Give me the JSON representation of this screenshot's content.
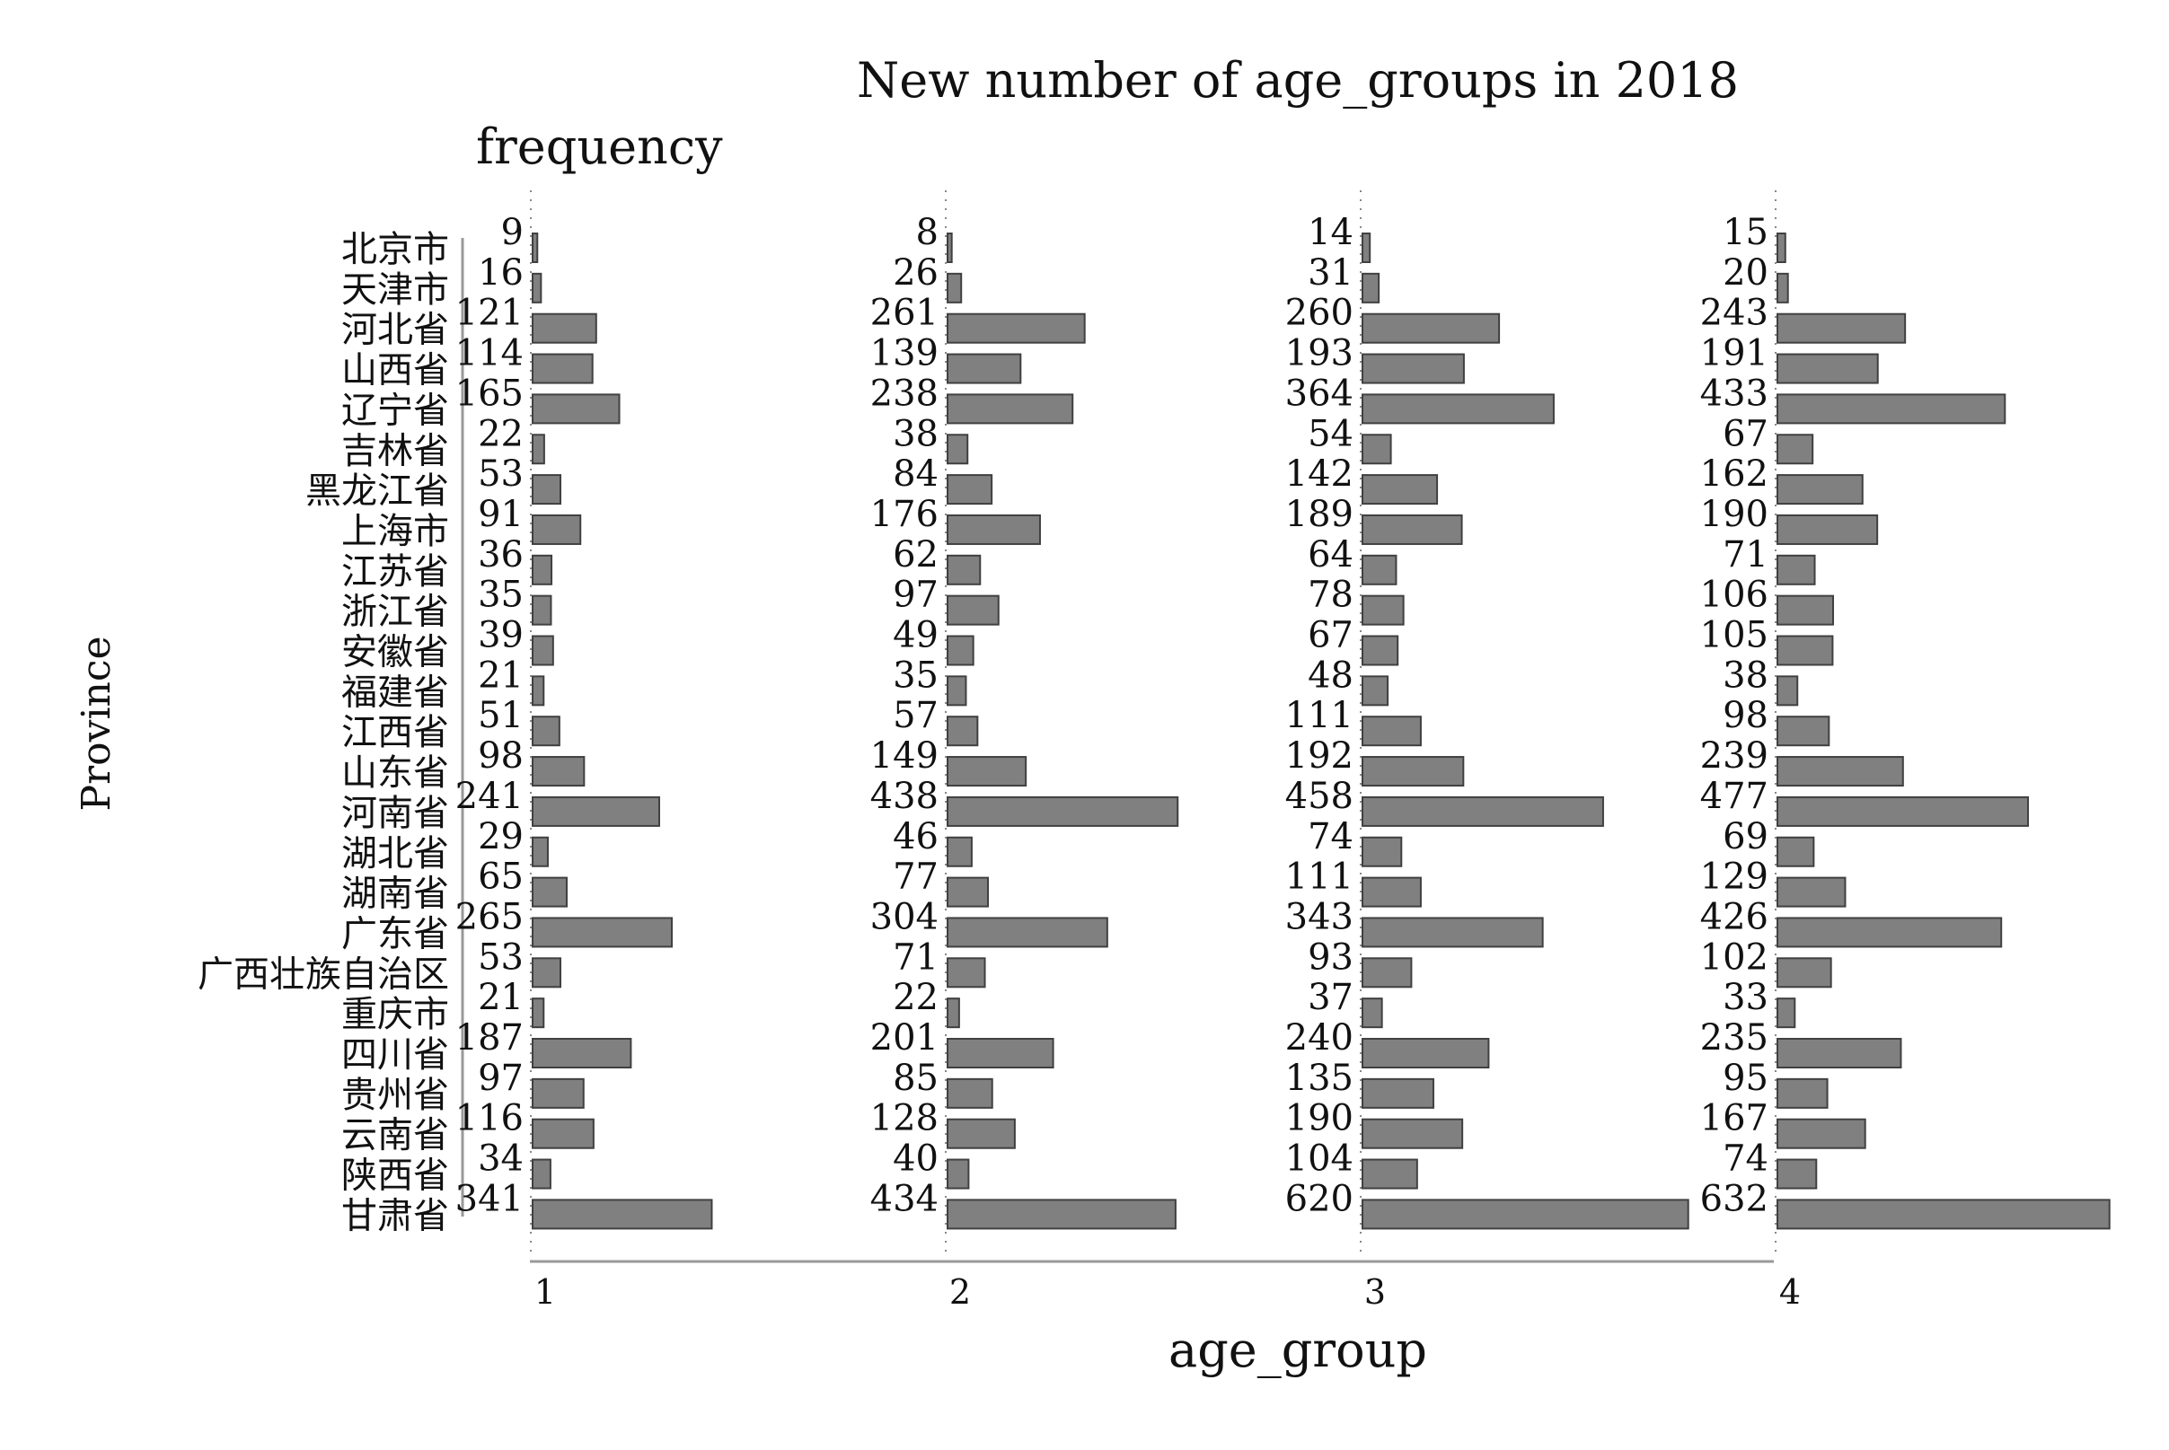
{
  "chart_data": {
    "type": "bar",
    "orientation": "horizontal",
    "layout": "small-multiples",
    "title": "New number of age_groups in 2018",
    "subtitle": "frequency",
    "xlabel": "age_group",
    "ylabel": "Province",
    "facet_labels": [
      "1",
      "2",
      "3",
      "4"
    ],
    "categories": [
      "北京市",
      "天津市",
      "河北省",
      "山西省",
      "辽宁省",
      "吉林省",
      "黑龙江省",
      "上海市",
      "江苏省",
      "浙江省",
      "安徽省",
      "福建省",
      "江西省",
      "山东省",
      "河南省",
      "湖北省",
      "湖南省",
      "广东省",
      "广西壮族自治区",
      "重庆市",
      "四川省",
      "贵州省",
      "云南省",
      "陕西省",
      "甘肃省"
    ],
    "series": [
      {
        "values": [
          9,
          16,
          121,
          114,
          165,
          22,
          53,
          91,
          36,
          35,
          39,
          21,
          51,
          98,
          241,
          29,
          65,
          265,
          53,
          21,
          187,
          97,
          116,
          34,
          341
        ]
      },
      {
        "values": [
          8,
          26,
          261,
          139,
          238,
          38,
          84,
          176,
          62,
          97,
          49,
          35,
          57,
          149,
          438,
          46,
          77,
          304,
          71,
          22,
          201,
          85,
          128,
          40,
          434
        ]
      },
      {
        "values": [
          14,
          31,
          260,
          193,
          364,
          54,
          142,
          189,
          64,
          78,
          67,
          48,
          111,
          192,
          458,
          74,
          111,
          343,
          93,
          37,
          240,
          135,
          190,
          104,
          620
        ]
      },
      {
        "values": [
          15,
          20,
          243,
          191,
          433,
          67,
          162,
          190,
          71,
          106,
          105,
          38,
          98,
          239,
          477,
          69,
          129,
          426,
          102,
          33,
          235,
          95,
          167,
          74,
          632
        ]
      }
    ],
    "bar_color": "#808080",
    "bar_edge_color": "#404040",
    "grid": false
  }
}
